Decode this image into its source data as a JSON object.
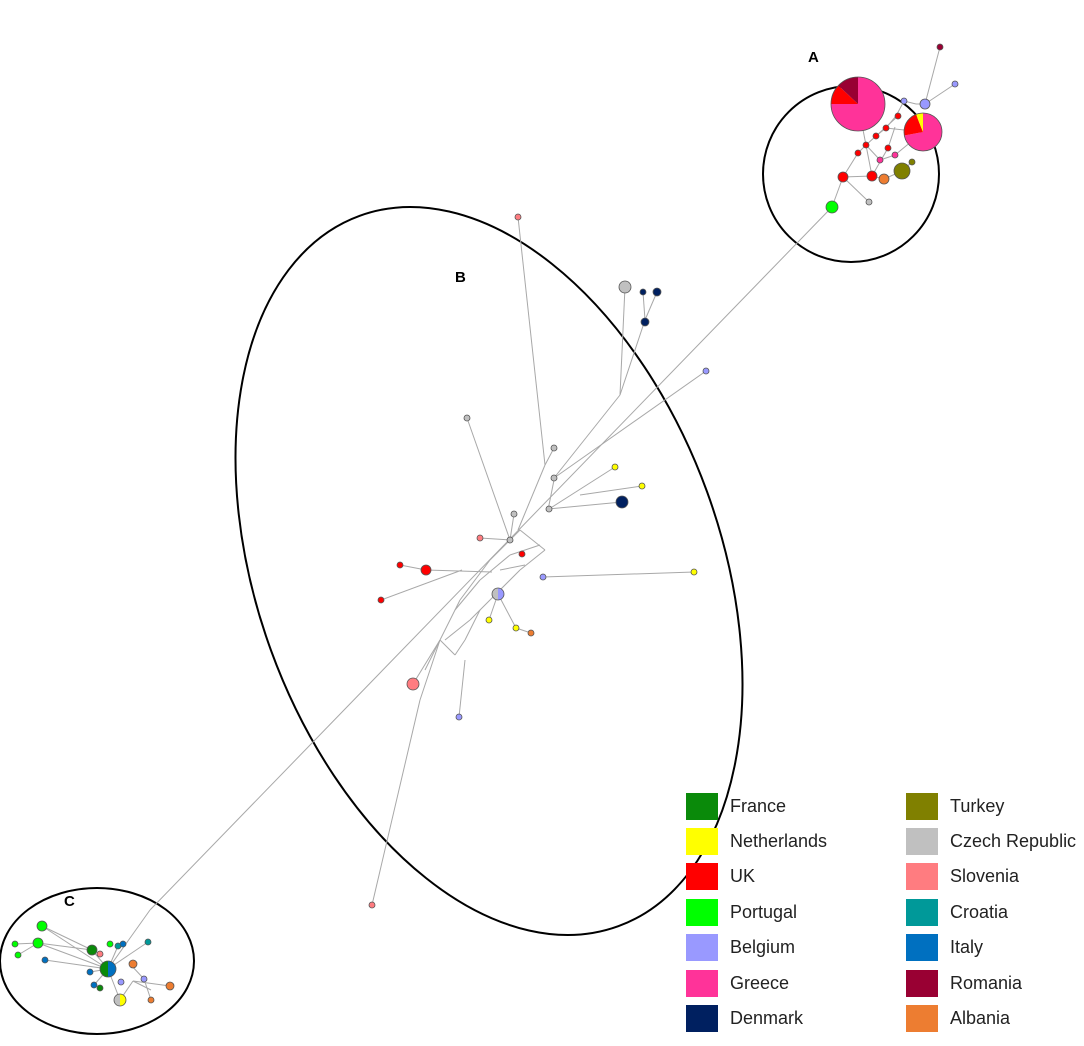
{
  "clusters": [
    {
      "id": "A",
      "label": "A"
    },
    {
      "id": "B",
      "label": "B"
    },
    {
      "id": "C",
      "label": "C"
    }
  ],
  "legend": [
    {
      "label": "France",
      "color": "#0a8a0a"
    },
    {
      "label": "Netherlands",
      "color": "#ffff00"
    },
    {
      "label": "UK",
      "color": "#ff0000"
    },
    {
      "label": "Portugal",
      "color": "#00ff00"
    },
    {
      "label": "Belgium",
      "color": "#9999ff"
    },
    {
      "label": "Greece",
      "color": "#ff3399"
    },
    {
      "label": "Denmark",
      "color": "#002060"
    },
    {
      "label": "Turkey",
      "color": "#808000"
    },
    {
      "label": "Czech Republic",
      "color": "#c0c0c0"
    },
    {
      "label": "Slovenia",
      "color": "#ff7c80"
    },
    {
      "label": "Croatia",
      "color": "#009999"
    },
    {
      "label": "Italy",
      "color": "#0070c0"
    },
    {
      "label": "Romania",
      "color": "#990033"
    },
    {
      "label": "Albania",
      "color": "#ed7d31"
    }
  ]
}
